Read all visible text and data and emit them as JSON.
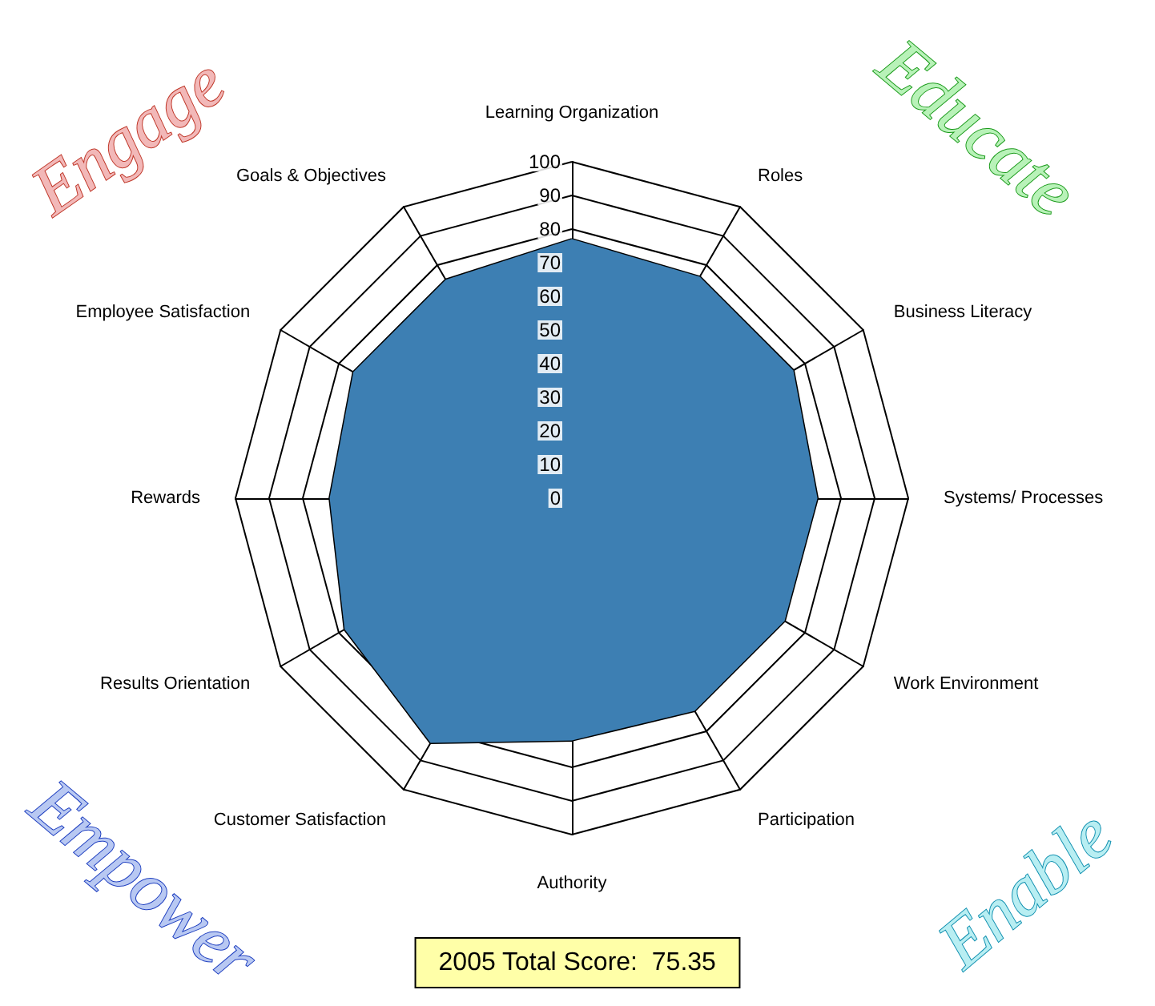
{
  "chart_data": {
    "type": "radar",
    "categories": [
      "Learning Organization",
      "Roles",
      "Business Literacy",
      "Systems/ Processes",
      "Work Environment",
      "Participation",
      "Authority",
      "Customer Satisfaction",
      "Results Orientation",
      "Rewards",
      "Employee Satisfaction",
      "Goals & Objectives"
    ],
    "series": [
      {
        "color": "#3d7fb3",
        "values": [
          77,
          76,
          76,
          73,
          73,
          73,
          72,
          84,
          78,
          72,
          75,
          75
        ]
      }
    ],
    "ylim": [
      0,
      100
    ],
    "yticks": [
      0,
      10,
      20,
      30,
      40,
      50,
      60,
      70,
      80,
      90,
      100
    ],
    "grid": true,
    "annotations": [
      "Engage",
      "Educate",
      "Empower",
      "Enable",
      "2005 Total Score:  75.35"
    ]
  }
}
